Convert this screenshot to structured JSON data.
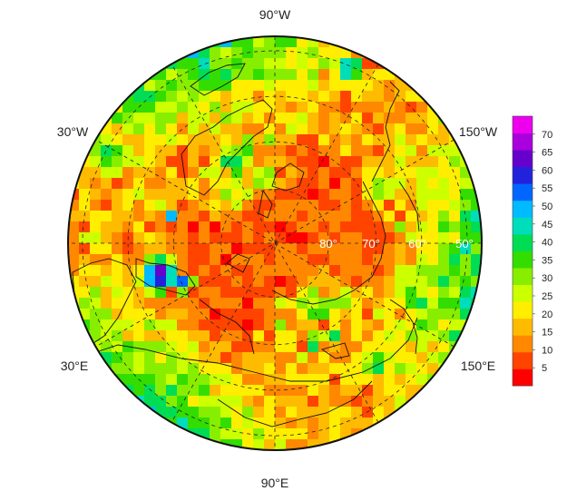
{
  "map": {
    "projection": "north polar stereographic",
    "longitude_labels": [
      "90°W",
      "30°W",
      "150°W",
      "30°E",
      "150°E",
      "90°E"
    ],
    "latitude_labels": [
      "80°",
      "70°",
      "60°",
      "50°"
    ]
  },
  "colorbar": {
    "ticks": [
      70,
      65,
      60,
      55,
      50,
      45,
      40,
      35,
      30,
      25,
      20,
      15,
      10,
      5
    ],
    "range": [
      0,
      75
    ],
    "palette": [
      "#ff0000",
      "#ff4400",
      "#ff8800",
      "#ffbb00",
      "#ffee00",
      "#ccff00",
      "#88ee00",
      "#33dd00",
      "#00dd55",
      "#00ddbb",
      "#00bbff",
      "#0066ff",
      "#2222dd",
      "#6600cc",
      "#aa00dd",
      "#ee00ee"
    ]
  }
}
